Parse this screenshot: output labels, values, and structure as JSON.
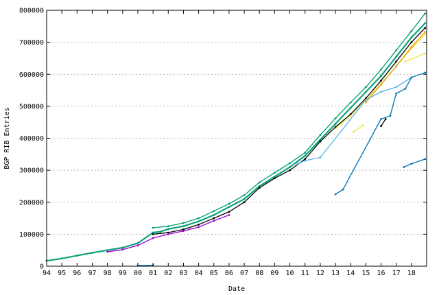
{
  "chart_data": {
    "type": "scatter",
    "title": "",
    "xlabel": "Date",
    "ylabel": "BGP RIB Entries",
    "xlim": [
      1994.0,
      2019.0
    ],
    "ylim": [
      0,
      800000
    ],
    "grid": "horizontal dashed",
    "legend": "none",
    "x_tick_labels": [
      "94",
      "95",
      "96",
      "97",
      "98",
      "99",
      "00",
      "01",
      "02",
      "03",
      "04",
      "05",
      "06",
      "07",
      "08",
      "09",
      "10",
      "11",
      "12",
      "13",
      "14",
      "15",
      "16",
      "17",
      "18"
    ],
    "x_tick_years": [
      1994,
      1995,
      1996,
      1997,
      1998,
      1999,
      2000,
      2001,
      2002,
      2003,
      2004,
      2005,
      2006,
      2007,
      2008,
      2009,
      2010,
      2011,
      2012,
      2013,
      2014,
      2015,
      2016,
      2017,
      2018
    ],
    "y_tick_values": [
      0,
      100000,
      200000,
      300000,
      400000,
      500000,
      600000,
      700000,
      800000
    ],
    "y_tick_labels": [
      "0",
      "100000",
      "200000",
      "300000",
      "400000",
      "500000",
      "600000",
      "700000",
      "800000"
    ],
    "series": [
      {
        "color": "#009e73",
        "x": [
          1994.0,
          1995.0,
          1996.0,
          1997.0,
          1998.0,
          1999.0,
          2000.0,
          2001.0,
          2001.5,
          2002.0,
          2003.0,
          2004.0,
          2005.0,
          2006.0,
          2007.0,
          2008.0,
          2009.0,
          2010.0,
          2011.0,
          2012.0,
          2013.0,
          2014.0,
          2015.0,
          2016.0,
          2017.0,
          2018.0,
          2018.9
        ],
        "y": [
          17000,
          24000,
          33000,
          42000,
          50000,
          58000,
          72000,
          105000,
          108000,
          116000,
          125000,
          140000,
          160000,
          185000,
          210000,
          250000,
          280000,
          310000,
          345000,
          395000,
          445000,
          495000,
          545000,
          595000,
          655000,
          715000,
          760000
        ]
      },
      {
        "color": "#009e73",
        "x": [
          2001.0,
          2002.0,
          2003.0,
          2004.0,
          2005.0,
          2006.0,
          2007.0,
          2008.0,
          2009.0,
          2010.0,
          2011.0,
          2012.0,
          2013.0,
          2014.0,
          2015.0,
          2016.0,
          2017.0,
          2018.0,
          2018.9
        ],
        "y": [
          120000,
          125000,
          135000,
          150000,
          172000,
          195000,
          222000,
          262000,
          292000,
          322000,
          355000,
          410000,
          462000,
          512000,
          560000,
          615000,
          675000,
          735000,
          790000
        ]
      },
      {
        "color": "#000000",
        "x": [
          2001.0,
          2002.0,
          2003.0,
          2004.0,
          2005.0,
          2006.0,
          2007.0,
          2008.0,
          2009.0,
          2010.0,
          2011.0,
          2012.0,
          2013.0,
          2014.0,
          2015.0,
          2016.0,
          2017.0,
          2018.0,
          2018.9
        ],
        "y": [
          100000,
          105000,
          115000,
          130000,
          150000,
          170000,
          200000,
          245000,
          275000,
          300000,
          335000,
          390000,
          435000,
          475000,
          525000,
          580000,
          640000,
          700000,
          745000
        ]
      },
      {
        "color": "#9400d3",
        "x": [
          1998.0,
          1999.0,
          2000.0,
          2001.0,
          2002.0,
          2003.0,
          2004.0,
          2005.0,
          2006.0
        ],
        "y": [
          45000,
          52000,
          65000,
          88000,
          100000,
          110000,
          122000,
          142000,
          160000
        ]
      },
      {
        "color": "#f0e442",
        "x": [
          2013.0,
          2014.0,
          2015.0,
          2016.0,
          2017.0,
          2018.0,
          2018.9
        ],
        "y": [
          430000,
          470000,
          520000,
          570000,
          625000,
          680000,
          725000
        ]
      },
      {
        "color": "#e69f00",
        "x": [
          2015.0,
          2016.0,
          2017.0,
          2018.0,
          2018.9
        ],
        "y": [
          512000,
          568000,
          625000,
          685000,
          732000
        ]
      },
      {
        "color": "#56b4e9",
        "x": [
          2010.5,
          2011.0,
          2012.0,
          2015.0,
          2016.0,
          2017.0,
          2018.0
        ],
        "y": [
          320000,
          330000,
          340000,
          520000,
          545000,
          560000,
          590000
        ]
      },
      {
        "color": "#0072b2",
        "x": [
          2013.0,
          2013.5,
          2016.0,
          2016.6,
          2017.0,
          2017.6,
          2018.0,
          2018.9
        ],
        "y": [
          225000,
          240000,
          460000,
          470000,
          540000,
          555000,
          590000,
          605000
        ]
      },
      {
        "color": "#0072b2",
        "x": [
          2017.5,
          2018.0,
          2018.9
        ],
        "y": [
          310000,
          320000,
          335000
        ]
      },
      {
        "color": "#f0e442",
        "x": [
          2014.2,
          2014.8
        ],
        "y": [
          420000,
          440000
        ]
      },
      {
        "color": "#f0e442",
        "x": [
          2017.6,
          2018.9
        ],
        "y": [
          640000,
          665000
        ]
      },
      {
        "color": "#000000",
        "x": [
          2016.0,
          2016.3
        ],
        "y": [
          438000,
          460000
        ]
      },
      {
        "color": "#0072b2",
        "x": [
          2000.0,
          2001.0
        ],
        "y": [
          2000,
          3000
        ]
      }
    ]
  }
}
